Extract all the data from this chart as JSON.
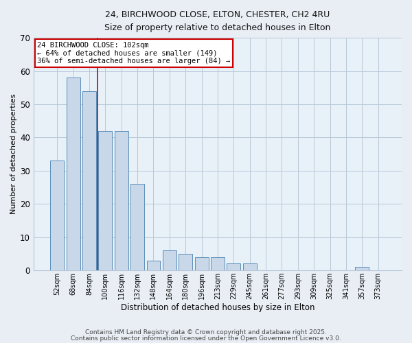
{
  "title_line1": "24, BIRCHWOOD CLOSE, ELTON, CHESTER, CH2 4RU",
  "title_line2": "Size of property relative to detached houses in Elton",
  "xlabel": "Distribution of detached houses by size in Elton",
  "ylabel": "Number of detached properties",
  "categories": [
    "52sqm",
    "68sqm",
    "84sqm",
    "100sqm",
    "116sqm",
    "132sqm",
    "148sqm",
    "164sqm",
    "180sqm",
    "196sqm",
    "213sqm",
    "229sqm",
    "245sqm",
    "261sqm",
    "277sqm",
    "293sqm",
    "309sqm",
    "325sqm",
    "341sqm",
    "357sqm",
    "373sqm"
  ],
  "values": [
    33,
    58,
    54,
    42,
    42,
    26,
    3,
    6,
    5,
    4,
    4,
    2,
    2,
    0,
    0,
    0,
    0,
    0,
    0,
    1,
    0
  ],
  "bar_color": "#c8d8e8",
  "bar_edge_color": "#5b8db8",
  "vline_x": 2.5,
  "vline_color": "#cc0000",
  "ylim": [
    0,
    70
  ],
  "yticks": [
    0,
    10,
    20,
    30,
    40,
    50,
    60,
    70
  ],
  "annotation_text": "24 BIRCHWOOD CLOSE: 102sqm\n← 64% of detached houses are smaller (149)\n36% of semi-detached houses are larger (84) →",
  "annotation_box_color": "#ffffff",
  "annotation_box_edge": "#cc0000",
  "footer_line1": "Contains HM Land Registry data © Crown copyright and database right 2025.",
  "footer_line2": "Contains public sector information licensed under the Open Government Licence v3.0.",
  "bg_color": "#e8eef4",
  "plot_bg_color": "#e8f0f8"
}
